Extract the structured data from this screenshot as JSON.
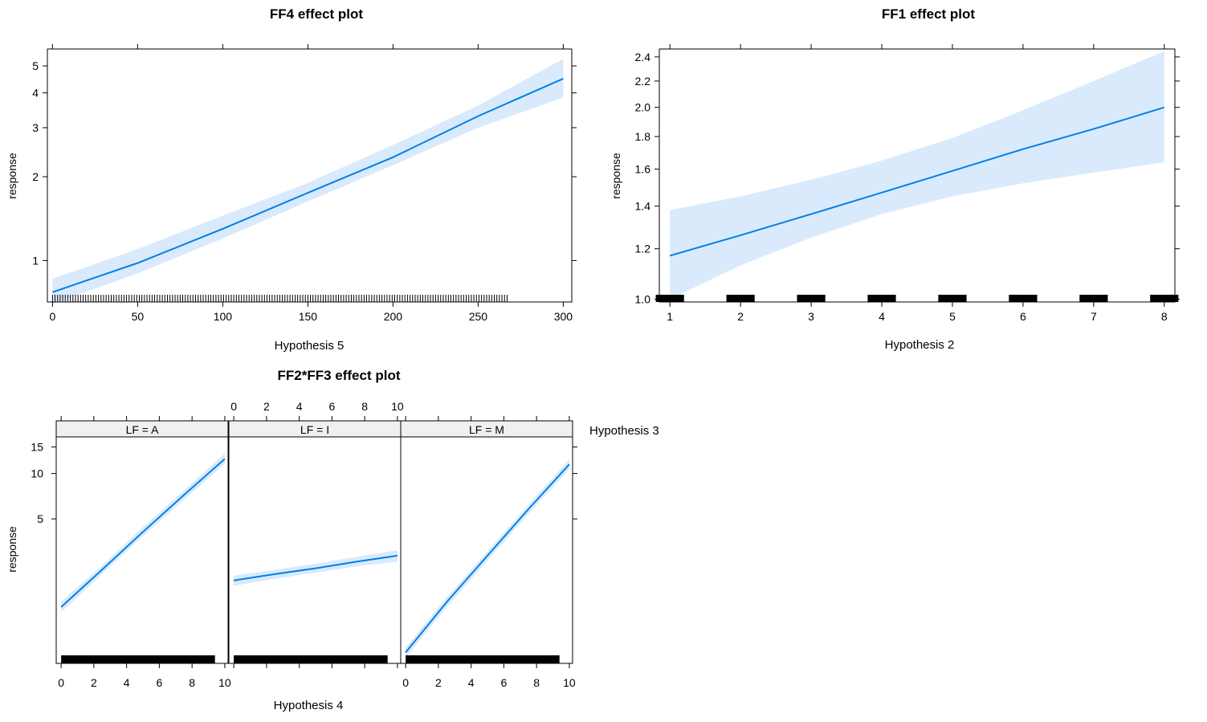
{
  "colors": {
    "line": "#0080E6",
    "band": "#D9EAFC",
    "strip": "#F0F0F0",
    "axis": "#000000"
  },
  "chart_data": [
    {
      "id": "ff4",
      "type": "line",
      "title": "FF4 effect plot",
      "xlabel": "Hypothesis 5",
      "ylabel": "response",
      "xlim": [
        -3,
        305
      ],
      "ylim": [
        0.71,
        5.75
      ],
      "yscale": "log",
      "xticks": [
        0,
        50,
        100,
        150,
        200,
        250,
        300
      ],
      "xtick_labels": [
        "0",
        "50",
        "100",
        "150",
        "200",
        "250",
        "300"
      ],
      "yticks": [
        1,
        2,
        3,
        4,
        5
      ],
      "ytick_labels": [
        "1",
        "2",
        "3",
        "4",
        "5"
      ],
      "x": [
        0,
        50,
        100,
        150,
        200,
        250,
        300
      ],
      "y": [
        0.77,
        0.98,
        1.3,
        1.75,
        2.35,
        3.3,
        4.5
      ],
      "lower": [
        0.7,
        0.9,
        1.2,
        1.63,
        2.2,
        3.0,
        3.85
      ],
      "upper": [
        0.86,
        1.1,
        1.45,
        1.9,
        2.6,
        3.6,
        5.3
      ],
      "rug": {
        "from": 0,
        "to": 268,
        "step": 1.5
      }
    },
    {
      "id": "ff1",
      "type": "line",
      "title": "FF1 effect plot",
      "xlabel": "Hypothesis 2",
      "ylabel": "response",
      "xlim": [
        0.85,
        8.15
      ],
      "ylim": [
        0.99,
        2.47
      ],
      "yscale": "log",
      "xticks": [
        1,
        2,
        3,
        4,
        5,
        6,
        7,
        8
      ],
      "xtick_labels": [
        "1",
        "2",
        "3",
        "4",
        "5",
        "6",
        "7",
        "8"
      ],
      "yticks": [
        1.0,
        1.2,
        1.4,
        1.6,
        1.8,
        2.0,
        2.2,
        2.4
      ],
      "ytick_labels": [
        "1.0",
        "1.2",
        "1.4",
        "1.6",
        "1.8",
        "2.0",
        "2.2",
        "2.4"
      ],
      "x": [
        1,
        2,
        3,
        4,
        5,
        6,
        7,
        8
      ],
      "y": [
        1.17,
        1.26,
        1.36,
        1.47,
        1.59,
        1.72,
        1.85,
        2.0
      ],
      "lower": [
        1.0,
        1.13,
        1.25,
        1.36,
        1.45,
        1.52,
        1.58,
        1.64
      ],
      "upper": [
        1.38,
        1.45,
        1.54,
        1.65,
        1.79,
        1.98,
        2.2,
        2.45
      ],
      "rug": {
        "values": [
          1,
          2,
          3,
          4,
          5,
          6,
          7,
          8
        ],
        "halfwidth": 0.2
      }
    },
    {
      "id": "ff2ff3",
      "type": "line",
      "title": "FF2*FF3 effect plot",
      "xlabel": "Hypothesis 4",
      "ylabel": "response",
      "strip_label": "Hypothesis 3",
      "xlim": [
        -0.3,
        10.2
      ],
      "ylim": [
        0.55,
        17.5
      ],
      "yscale": "log",
      "xticks": [
        0,
        2,
        4,
        6,
        8,
        10
      ],
      "xtick_labels": [
        "0",
        "2",
        "4",
        "6",
        "8",
        "10"
      ],
      "yticks": [
        5,
        10,
        15
      ],
      "ytick_labels": [
        "5",
        "10",
        "15"
      ],
      "panels": [
        {
          "strip": "LF = A",
          "x": [
            0,
            2.5,
            5,
            7.5,
            10
          ],
          "y": [
            1.3,
            2.3,
            4.1,
            7.2,
            12.5
          ],
          "lower": [
            1.2,
            2.15,
            3.85,
            6.7,
            11.6
          ],
          "upper": [
            1.42,
            2.45,
            4.4,
            7.7,
            13.6
          ],
          "rug": [
            0,
            9.4
          ]
        },
        {
          "strip": "LF = I",
          "x": [
            0,
            2.5,
            5,
            7.5,
            10
          ],
          "y": [
            1.95,
            2.15,
            2.35,
            2.6,
            2.85
          ],
          "lower": [
            1.8,
            2.0,
            2.2,
            2.42,
            2.6
          ],
          "upper": [
            2.1,
            2.3,
            2.52,
            2.8,
            3.1
          ],
          "rug": [
            0,
            9.4
          ]
        },
        {
          "strip": "LF = M",
          "x": [
            0,
            2.5,
            5,
            7.5,
            10
          ],
          "y": [
            0.65,
            1.4,
            2.85,
            5.8,
            11.5
          ],
          "lower": [
            0.6,
            1.3,
            2.65,
            5.4,
            10.7
          ],
          "upper": [
            0.7,
            1.5,
            3.05,
            6.2,
            12.4
          ],
          "rug": [
            0,
            9.4
          ]
        }
      ]
    }
  ]
}
